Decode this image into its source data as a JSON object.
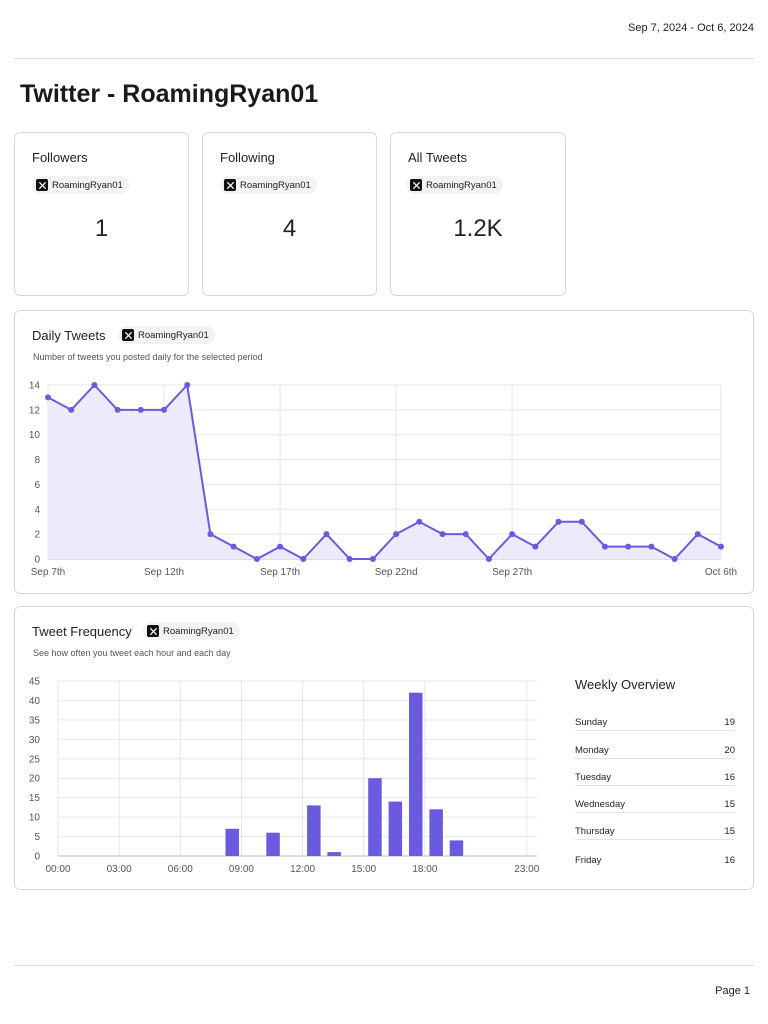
{
  "header": {
    "date_range": "Sep 7, 2024 - Oct 6, 2024",
    "title": "Twitter - RoamingRyan01"
  },
  "account": {
    "handle": "RoamingRyan01",
    "network_icon": "x-logo-icon"
  },
  "stats": [
    {
      "label": "Followers",
      "value": "1"
    },
    {
      "label": "Following",
      "value": "4"
    },
    {
      "label": "All Tweets",
      "value": "1.2K"
    }
  ],
  "daily_tweets": {
    "title": "Daily Tweets",
    "subtitle": "Number of tweets you posted daily for the selected period"
  },
  "tweet_frequency": {
    "title": "Tweet Frequency",
    "subtitle": "See how often you tweet each hour and each day"
  },
  "weekly_overview": {
    "title": "Weekly Overview",
    "days": [
      {
        "day": "Sunday",
        "count": "19"
      },
      {
        "day": "Monday",
        "count": "20"
      },
      {
        "day": "Tuesday",
        "count": "16"
      },
      {
        "day": "Wednesday",
        "count": "15"
      },
      {
        "day": "Thursday",
        "count": "15"
      },
      {
        "day": "Friday",
        "count": "16"
      }
    ]
  },
  "footer": {
    "page": "Page 1"
  },
  "colors": {
    "accent": "#6a5ae0",
    "accent_fill": "#ecebfb",
    "grid": "#e6e6e6"
  },
  "chart_data": [
    {
      "type": "area",
      "title": "",
      "xlabel": "",
      "ylabel": "",
      "x": [
        "Sep 7",
        "Sep 8",
        "Sep 9",
        "Sep 10",
        "Sep 11",
        "Sep 12",
        "Sep 13",
        "Sep 14",
        "Sep 15",
        "Sep 16",
        "Sep 17",
        "Sep 18",
        "Sep 19",
        "Sep 20",
        "Sep 21",
        "Sep 22",
        "Sep 23",
        "Sep 24",
        "Sep 25",
        "Sep 26",
        "Sep 27",
        "Sep 28",
        "Sep 29",
        "Sep 30",
        "Oct 1",
        "Oct 2",
        "Oct 3",
        "Oct 4",
        "Oct 5",
        "Oct 6"
      ],
      "x_tick_labels": [
        "Sep 7th",
        "Sep 12th",
        "Sep 17th",
        "Sep 22nd",
        "Sep 27th",
        "Oct 6th"
      ],
      "series": [
        {
          "values": [
            13,
            12,
            14,
            12,
            12,
            12,
            14,
            2,
            1,
            0,
            1,
            0,
            2,
            0,
            0,
            2,
            3,
            2,
            2,
            0,
            2,
            1,
            3,
            3,
            1,
            1,
            1,
            0,
            2,
            1
          ]
        }
      ],
      "ylim": [
        0,
        14
      ],
      "y_ticks": [
        0,
        2,
        4,
        6,
        8,
        10,
        12,
        14
      ],
      "grid": true
    },
    {
      "type": "bar",
      "title": "",
      "xlabel": "",
      "ylabel": "",
      "categories": [
        "00:00",
        "01:00",
        "02:00",
        "03:00",
        "04:00",
        "05:00",
        "06:00",
        "07:00",
        "08:00",
        "09:00",
        "10:00",
        "11:00",
        "12:00",
        "13:00",
        "14:00",
        "15:00",
        "16:00",
        "17:00",
        "18:00",
        "19:00",
        "20:00",
        "21:00",
        "22:00",
        "23:00"
      ],
      "x_tick_labels": [
        "00:00",
        "03:00",
        "06:00",
        "09:00",
        "12:00",
        "15:00",
        "18:00",
        "23:00"
      ],
      "series": [
        {
          "values": [
            0,
            0,
            0,
            0,
            0,
            0,
            0,
            0,
            7,
            0,
            6,
            0,
            13,
            1,
            0,
            20,
            14,
            42,
            12,
            4,
            0,
            0,
            0,
            0
          ]
        }
      ],
      "ylim": [
        0,
        45
      ],
      "y_ticks": [
        0,
        5,
        10,
        15,
        20,
        25,
        30,
        35,
        40,
        45
      ],
      "grid": true
    }
  ]
}
